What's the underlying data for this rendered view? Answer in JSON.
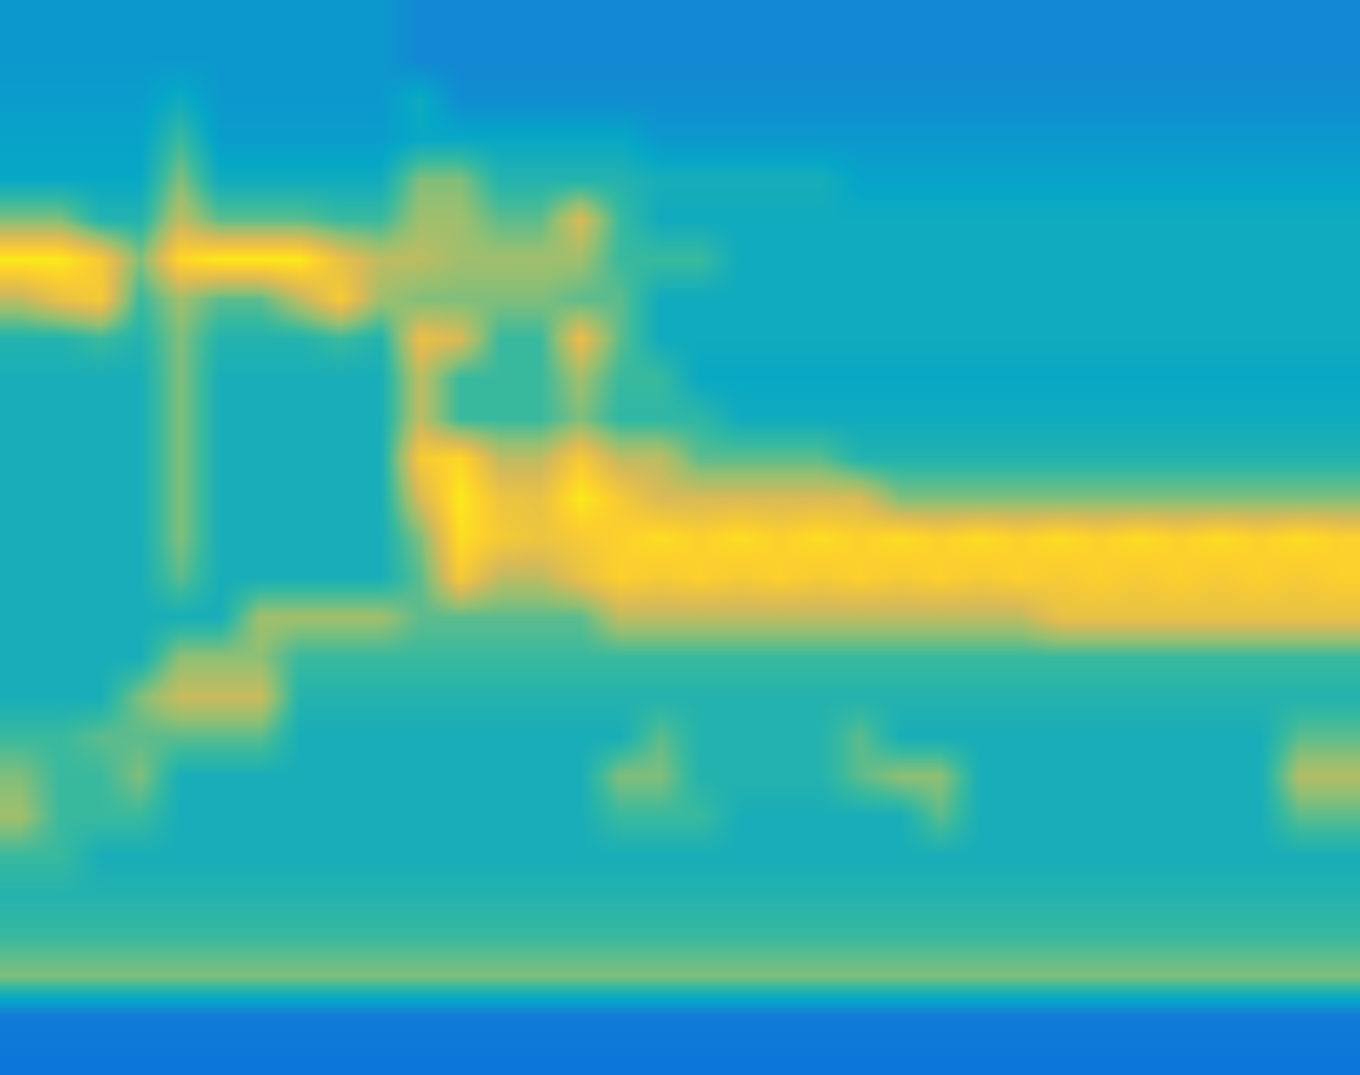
{
  "chart_data": {
    "type": "heatmap",
    "xlim": [
      -0.5,
      33.5
    ],
    "ylim": [
      26.5,
      -0.5
    ],
    "zlim": [
      0,
      1
    ],
    "tick_labels": false,
    "cells": [
      [
        0.32,
        0.32,
        0.32,
        0.32,
        0.32,
        0.32,
        0.32,
        0.32,
        0.32,
        0.32,
        0.26,
        0.26,
        0.26,
        0.26,
        0.26,
        0.26,
        0.26,
        0.26,
        0.26,
        0.26,
        0.26,
        0.26,
        0.26,
        0.26,
        0.26,
        0.26,
        0.26,
        0.26,
        0.26,
        0.26,
        0.26,
        0.26,
        0.26,
        0.26
      ],
      [
        0.32,
        0.32,
        0.32,
        0.32,
        0.32,
        0.32,
        0.32,
        0.32,
        0.32,
        0.32,
        0.26,
        0.26,
        0.26,
        0.26,
        0.26,
        0.26,
        0.26,
        0.26,
        0.26,
        0.26,
        0.26,
        0.26,
        0.26,
        0.26,
        0.26,
        0.26,
        0.26,
        0.26,
        0.26,
        0.26,
        0.26,
        0.26,
        0.26,
        0.26
      ],
      [
        0.34,
        0.34,
        0.34,
        0.34,
        0.4,
        0.32,
        0.32,
        0.32,
        0.32,
        0.32,
        0.4,
        0.28,
        0.28,
        0.28,
        0.28,
        0.28,
        0.28,
        0.28,
        0.28,
        0.28,
        0.28,
        0.28,
        0.28,
        0.28,
        0.28,
        0.28,
        0.28,
        0.28,
        0.28,
        0.28,
        0.28,
        0.28,
        0.28,
        0.28
      ],
      [
        0.36,
        0.36,
        0.36,
        0.36,
        0.5,
        0.34,
        0.34,
        0.34,
        0.34,
        0.34,
        0.38,
        0.38,
        0.38,
        0.38,
        0.38,
        0.38,
        0.32,
        0.32,
        0.32,
        0.32,
        0.32,
        0.32,
        0.32,
        0.32,
        0.32,
        0.32,
        0.32,
        0.32,
        0.32,
        0.32,
        0.32,
        0.32,
        0.32,
        0.32
      ],
      [
        0.38,
        0.38,
        0.38,
        0.38,
        0.6,
        0.4,
        0.4,
        0.4,
        0.4,
        0.4,
        0.6,
        0.6,
        0.45,
        0.45,
        0.45,
        0.45,
        0.42,
        0.42,
        0.42,
        0.42,
        0.42,
        0.36,
        0.36,
        0.36,
        0.36,
        0.36,
        0.36,
        0.36,
        0.36,
        0.36,
        0.36,
        0.36,
        0.36,
        0.36
      ],
      [
        0.6,
        0.6,
        0.45,
        0.45,
        0.7,
        0.55,
        0.55,
        0.55,
        0.5,
        0.5,
        0.65,
        0.65,
        0.55,
        0.55,
        0.75,
        0.5,
        0.4,
        0.4,
        0.4,
        0.4,
        0.4,
        0.4,
        0.4,
        0.4,
        0.4,
        0.4,
        0.4,
        0.4,
        0.4,
        0.4,
        0.4,
        0.4,
        0.4,
        0.4
      ],
      [
        0.95,
        0.95,
        0.85,
        0.6,
        0.9,
        0.95,
        0.95,
        0.95,
        0.8,
        0.7,
        0.7,
        0.65,
        0.65,
        0.65,
        0.65,
        0.5,
        0.5,
        0.5,
        0.4,
        0.4,
        0.4,
        0.4,
        0.4,
        0.4,
        0.4,
        0.4,
        0.4,
        0.4,
        0.4,
        0.4,
        0.4,
        0.4,
        0.4,
        0.4
      ],
      [
        0.7,
        0.8,
        0.85,
        0.5,
        0.65,
        0.55,
        0.55,
        0.7,
        0.85,
        0.65,
        0.6,
        0.6,
        0.6,
        0.6,
        0.55,
        0.55,
        0.4,
        0.4,
        0.4,
        0.4,
        0.4,
        0.4,
        0.4,
        0.4,
        0.4,
        0.4,
        0.4,
        0.4,
        0.4,
        0.4,
        0.4,
        0.4,
        0.4,
        0.4
      ],
      [
        0.45,
        0.45,
        0.5,
        0.45,
        0.6,
        0.45,
        0.45,
        0.45,
        0.5,
        0.45,
        0.8,
        0.75,
        0.5,
        0.5,
        0.8,
        0.55,
        0.4,
        0.4,
        0.4,
        0.4,
        0.4,
        0.4,
        0.4,
        0.4,
        0.4,
        0.4,
        0.4,
        0.4,
        0.4,
        0.4,
        0.4,
        0.4,
        0.4,
        0.4
      ],
      [
        0.42,
        0.42,
        0.42,
        0.42,
        0.6,
        0.42,
        0.42,
        0.42,
        0.42,
        0.42,
        0.7,
        0.5,
        0.5,
        0.5,
        0.65,
        0.5,
        0.5,
        0.38,
        0.38,
        0.38,
        0.38,
        0.38,
        0.38,
        0.38,
        0.38,
        0.38,
        0.38,
        0.38,
        0.38,
        0.38,
        0.38,
        0.38,
        0.38,
        0.38
      ],
      [
        0.42,
        0.42,
        0.42,
        0.42,
        0.6,
        0.42,
        0.42,
        0.42,
        0.42,
        0.42,
        0.7,
        0.5,
        0.5,
        0.5,
        0.6,
        0.48,
        0.48,
        0.48,
        0.4,
        0.4,
        0.4,
        0.4,
        0.4,
        0.4,
        0.4,
        0.4,
        0.4,
        0.4,
        0.4,
        0.4,
        0.4,
        0.4,
        0.4,
        0.4
      ],
      [
        0.42,
        0.42,
        0.42,
        0.42,
        0.6,
        0.42,
        0.42,
        0.42,
        0.42,
        0.42,
        0.85,
        0.9,
        0.7,
        0.7,
        0.85,
        0.7,
        0.7,
        0.55,
        0.55,
        0.55,
        0.55,
        0.45,
        0.45,
        0.45,
        0.45,
        0.45,
        0.45,
        0.45,
        0.45,
        0.45,
        0.45,
        0.45,
        0.45,
        0.45
      ],
      [
        0.42,
        0.42,
        0.42,
        0.42,
        0.6,
        0.42,
        0.42,
        0.42,
        0.42,
        0.42,
        0.75,
        0.95,
        0.82,
        0.8,
        0.95,
        0.85,
        0.75,
        0.75,
        0.75,
        0.75,
        0.75,
        0.75,
        0.6,
        0.6,
        0.6,
        0.6,
        0.6,
        0.6,
        0.6,
        0.6,
        0.6,
        0.6,
        0.6,
        0.6
      ],
      [
        0.42,
        0.42,
        0.42,
        0.42,
        0.6,
        0.42,
        0.42,
        0.42,
        0.42,
        0.42,
        0.6,
        0.92,
        0.85,
        0.82,
        0.85,
        0.88,
        0.92,
        0.88,
        0.92,
        0.88,
        0.92,
        0.88,
        0.92,
        0.88,
        0.92,
        0.88,
        0.92,
        0.88,
        0.92,
        0.88,
        0.92,
        0.88,
        0.92,
        0.88
      ],
      [
        0.42,
        0.42,
        0.42,
        0.42,
        0.55,
        0.42,
        0.42,
        0.42,
        0.42,
        0.42,
        0.55,
        0.85,
        0.7,
        0.7,
        0.8,
        0.88,
        0.85,
        0.88,
        0.85,
        0.88,
        0.85,
        0.88,
        0.85,
        0.88,
        0.85,
        0.88,
        0.85,
        0.88,
        0.85,
        0.88,
        0.85,
        0.88,
        0.85,
        0.88
      ],
      [
        0.42,
        0.42,
        0.42,
        0.42,
        0.42,
        0.42,
        0.65,
        0.65,
        0.65,
        0.65,
        0.55,
        0.55,
        0.55,
        0.55,
        0.55,
        0.7,
        0.7,
        0.7,
        0.7,
        0.7,
        0.7,
        0.7,
        0.7,
        0.7,
        0.7,
        0.7,
        0.8,
        0.8,
        0.8,
        0.8,
        0.8,
        0.8,
        0.8,
        0.8
      ],
      [
        0.42,
        0.42,
        0.42,
        0.42,
        0.62,
        0.62,
        0.62,
        0.5,
        0.5,
        0.5,
        0.5,
        0.5,
        0.5,
        0.5,
        0.5,
        0.5,
        0.5,
        0.5,
        0.5,
        0.5,
        0.5,
        0.5,
        0.5,
        0.5,
        0.5,
        0.5,
        0.5,
        0.5,
        0.5,
        0.5,
        0.5,
        0.5,
        0.5,
        0.5
      ],
      [
        0.42,
        0.42,
        0.42,
        0.6,
        0.72,
        0.72,
        0.72,
        0.45,
        0.45,
        0.45,
        0.45,
        0.45,
        0.45,
        0.45,
        0.45,
        0.45,
        0.45,
        0.45,
        0.45,
        0.45,
        0.45,
        0.45,
        0.45,
        0.45,
        0.45,
        0.45,
        0.45,
        0.45,
        0.45,
        0.45,
        0.45,
        0.45,
        0.45,
        0.45
      ],
      [
        0.5,
        0.5,
        0.55,
        0.55,
        0.55,
        0.55,
        0.55,
        0.42,
        0.42,
        0.42,
        0.42,
        0.42,
        0.42,
        0.42,
        0.42,
        0.42,
        0.55,
        0.45,
        0.45,
        0.45,
        0.45,
        0.55,
        0.42,
        0.42,
        0.42,
        0.42,
        0.42,
        0.42,
        0.42,
        0.42,
        0.42,
        0.42,
        0.55,
        0.55
      ],
      [
        0.6,
        0.5,
        0.5,
        0.6,
        0.42,
        0.42,
        0.42,
        0.42,
        0.42,
        0.42,
        0.42,
        0.42,
        0.42,
        0.42,
        0.42,
        0.6,
        0.6,
        0.45,
        0.45,
        0.45,
        0.45,
        0.55,
        0.62,
        0.62,
        0.42,
        0.42,
        0.42,
        0.42,
        0.42,
        0.42,
        0.42,
        0.42,
        0.68,
        0.68
      ],
      [
        0.65,
        0.5,
        0.5,
        0.5,
        0.42,
        0.42,
        0.42,
        0.42,
        0.42,
        0.42,
        0.42,
        0.42,
        0.42,
        0.42,
        0.42,
        0.5,
        0.5,
        0.5,
        0.42,
        0.42,
        0.42,
        0.42,
        0.42,
        0.55,
        0.42,
        0.42,
        0.42,
        0.42,
        0.42,
        0.42,
        0.42,
        0.42,
        0.55,
        0.55
      ],
      [
        0.5,
        0.5,
        0.42,
        0.42,
        0.42,
        0.42,
        0.42,
        0.42,
        0.42,
        0.42,
        0.42,
        0.42,
        0.42,
        0.42,
        0.42,
        0.42,
        0.42,
        0.42,
        0.42,
        0.42,
        0.42,
        0.42,
        0.42,
        0.42,
        0.42,
        0.42,
        0.42,
        0.42,
        0.42,
        0.42,
        0.42,
        0.42,
        0.42,
        0.42
      ],
      [
        0.45,
        0.45,
        0.45,
        0.45,
        0.45,
        0.45,
        0.45,
        0.45,
        0.45,
        0.45,
        0.45,
        0.45,
        0.45,
        0.45,
        0.45,
        0.45,
        0.45,
        0.45,
        0.45,
        0.45,
        0.45,
        0.45,
        0.45,
        0.45,
        0.45,
        0.45,
        0.45,
        0.45,
        0.45,
        0.45,
        0.45,
        0.45,
        0.45,
        0.45
      ],
      [
        0.5,
        0.5,
        0.5,
        0.5,
        0.5,
        0.5,
        0.5,
        0.5,
        0.5,
        0.5,
        0.5,
        0.5,
        0.5,
        0.5,
        0.5,
        0.5,
        0.5,
        0.5,
        0.5,
        0.5,
        0.5,
        0.5,
        0.5,
        0.5,
        0.5,
        0.5,
        0.5,
        0.5,
        0.5,
        0.5,
        0.5,
        0.5,
        0.5,
        0.5
      ],
      [
        0.6,
        0.6,
        0.6,
        0.6,
        0.6,
        0.6,
        0.6,
        0.6,
        0.6,
        0.6,
        0.6,
        0.6,
        0.6,
        0.6,
        0.6,
        0.6,
        0.6,
        0.6,
        0.6,
        0.6,
        0.6,
        0.6,
        0.6,
        0.6,
        0.6,
        0.6,
        0.6,
        0.6,
        0.6,
        0.6,
        0.6,
        0.6,
        0.6,
        0.6
      ],
      [
        0.22,
        0.22,
        0.22,
        0.22,
        0.22,
        0.22,
        0.22,
        0.22,
        0.22,
        0.22,
        0.22,
        0.22,
        0.22,
        0.22,
        0.22,
        0.22,
        0.22,
        0.22,
        0.22,
        0.22,
        0.22,
        0.22,
        0.22,
        0.22,
        0.22,
        0.22,
        0.22,
        0.22,
        0.22,
        0.22,
        0.22,
        0.22,
        0.22,
        0.22
      ],
      [
        0.2,
        0.2,
        0.2,
        0.2,
        0.2,
        0.2,
        0.2,
        0.2,
        0.2,
        0.2,
        0.2,
        0.2,
        0.2,
        0.2,
        0.2,
        0.2,
        0.2,
        0.2,
        0.2,
        0.2,
        0.2,
        0.2,
        0.2,
        0.2,
        0.2,
        0.2,
        0.2,
        0.2,
        0.2,
        0.2,
        0.2,
        0.2,
        0.2,
        0.2
      ]
    ]
  }
}
